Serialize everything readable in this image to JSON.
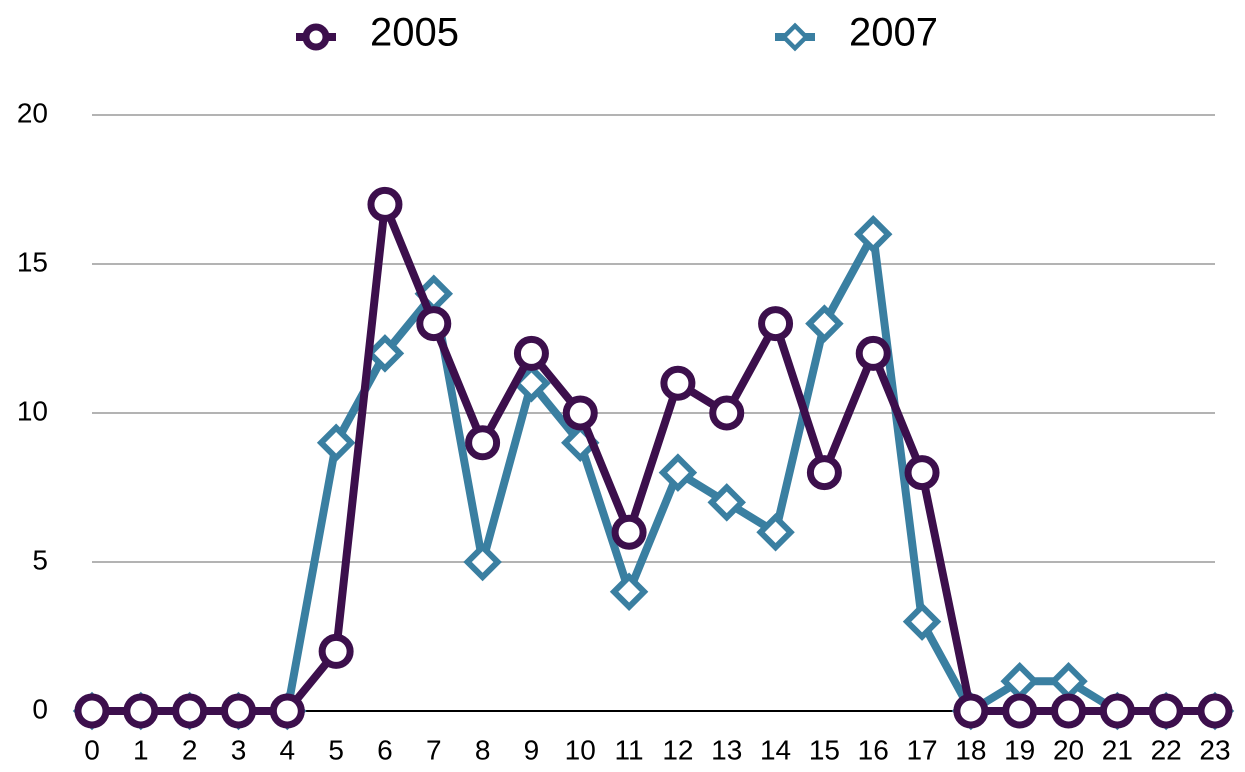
{
  "chart_data": {
    "type": "line",
    "categories": [
      "0",
      "1",
      "2",
      "3",
      "4",
      "5",
      "6",
      "7",
      "8",
      "9",
      "10",
      "11",
      "12",
      "13",
      "14",
      "15",
      "16",
      "17",
      "18",
      "19",
      "20",
      "21",
      "22",
      "23"
    ],
    "series": [
      {
        "name": "2005",
        "color": "#3c0f4c",
        "marker": "circle",
        "values": [
          0,
          0,
          0,
          0,
          0,
          2,
          17,
          13,
          9,
          12,
          10,
          6,
          11,
          10,
          13,
          8,
          12,
          8,
          0,
          0,
          0,
          0,
          0,
          0
        ]
      },
      {
        "name": "2007",
        "color": "#3a7fa1",
        "marker": "diamond",
        "values": [
          0,
          0,
          0,
          0,
          0,
          9,
          12,
          14,
          5,
          11,
          9,
          4,
          8,
          7,
          6,
          13,
          16,
          3,
          0,
          1,
          1,
          0,
          0,
          0
        ]
      }
    ],
    "ylim": [
      0,
      20
    ],
    "yticks": [
      0,
      5,
      10,
      15,
      20
    ],
    "grid": true,
    "legend": "top"
  }
}
